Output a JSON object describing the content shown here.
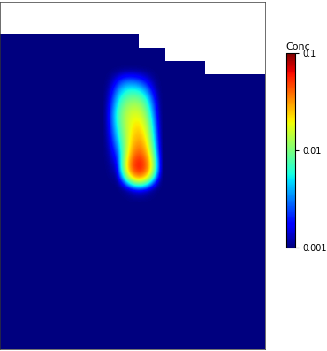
{
  "chart_data": {
    "type": "heatmap",
    "tick_labels": false,
    "log": true,
    "colorbar_label": "Conc",
    "colorbar_range": [
      0.001,
      0.1
    ],
    "colorbar_ticks": [
      0.1,
      0.01,
      0.001
    ],
    "cells": [
      [
        null,
        null,
        null,
        null,
        null,
        null,
        null,
        null,
        null,
        null,
        null,
        null,
        null,
        null,
        null,
        null,
        null,
        null,
        null,
        null
      ],
      [
        0.001,
        0.001,
        0.001,
        0.001,
        0.001,
        0.001,
        0.001,
        0.001,
        0.001,
        0.001,
        0.001,
        0.001,
        null,
        null,
        null,
        null,
        null,
        null,
        null,
        null
      ],
      [
        0.001,
        0.001,
        0.001,
        0.001,
        0.001,
        0.001,
        0.001,
        0.001,
        0.001,
        0.001,
        0.001,
        0.001,
        0.001,
        0.001,
        null,
        null,
        null,
        null,
        null,
        null
      ],
      [
        0.001,
        0.001,
        0.001,
        0.001,
        0.001,
        0.001,
        0.001,
        0.001,
        0.001,
        0.001,
        0.001,
        0.001,
        0.001,
        0.001,
        0.001,
        0.001,
        0.001,
        null,
        null,
        null
      ],
      [
        0.001,
        0.001,
        0.001,
        0.001,
        0.001,
        0.001,
        0.001,
        0.001,
        0.001,
        0.001,
        0.001,
        0.001,
        0.001,
        0.001,
        0.001,
        0.001,
        0.001,
        0.001,
        0.001,
        0.001
      ],
      [
        0.001,
        0.001,
        0.001,
        0.001,
        0.001,
        0.001,
        0.001,
        0.001,
        0.001,
        0.001,
        0.001,
        0.001,
        0.001,
        0.001,
        0.001,
        0.001,
        0.001,
        0.001,
        0.001,
        0.001
      ],
      [
        0.001,
        0.001,
        0.001,
        0.001,
        0.001,
        0.001,
        0.001,
        0.001,
        0.001,
        0.005,
        0.004,
        0.001,
        0.001,
        0.001,
        0.001,
        0.001,
        0.001,
        0.001,
        0.001,
        0.001
      ],
      [
        0.001,
        0.001,
        0.001,
        0.001,
        0.001,
        0.001,
        0.001,
        0.001,
        0.001,
        0.01,
        0.012,
        0.001,
        0.001,
        0.001,
        0.001,
        0.001,
        0.001,
        0.001,
        0.001,
        0.001
      ],
      [
        0.001,
        0.001,
        0.001,
        0.001,
        0.001,
        0.001,
        0.001,
        0.001,
        0.001,
        0.015,
        0.02,
        0.001,
        0.001,
        0.001,
        0.001,
        0.001,
        0.001,
        0.001,
        0.001,
        0.001
      ],
      [
        0.001,
        0.001,
        0.001,
        0.001,
        0.001,
        0.001,
        0.001,
        0.001,
        0.001,
        0.012,
        0.03,
        0.001,
        0.001,
        0.001,
        0.001,
        0.001,
        0.001,
        0.001,
        0.001,
        0.001
      ],
      [
        0.001,
        0.001,
        0.001,
        0.001,
        0.001,
        0.001,
        0.001,
        0.001,
        0.001,
        0.008,
        0.04,
        0.001,
        0.001,
        0.001,
        0.001,
        0.001,
        0.001,
        0.001,
        0.001,
        0.001
      ],
      [
        0.001,
        0.001,
        0.001,
        0.001,
        0.001,
        0.001,
        0.001,
        0.001,
        0.001,
        0.004,
        0.06,
        0.001,
        0.001,
        0.001,
        0.001,
        0.001,
        0.001,
        0.001,
        0.001,
        0.001
      ],
      [
        0.001,
        0.001,
        0.001,
        0.001,
        0.001,
        0.001,
        0.001,
        0.001,
        0.001,
        0.002,
        0.1,
        0.001,
        0.001,
        0.001,
        0.001,
        0.001,
        0.001,
        0.001,
        0.001,
        0.001
      ],
      [
        0.001,
        0.001,
        0.001,
        0.001,
        0.001,
        0.001,
        0.001,
        0.001,
        0.001,
        0.001,
        0.003,
        0.001,
        0.001,
        0.001,
        0.001,
        0.001,
        0.001,
        0.001,
        0.001,
        0.001
      ],
      [
        0.001,
        0.001,
        0.001,
        0.001,
        0.001,
        0.001,
        0.001,
        0.001,
        0.001,
        0.001,
        0.001,
        0.001,
        0.001,
        0.001,
        0.001,
        0.001,
        0.001,
        0.001,
        0.001,
        0.001
      ],
      [
        0.001,
        0.001,
        0.001,
        0.001,
        0.001,
        0.001,
        0.001,
        0.001,
        0.001,
        0.001,
        0.001,
        0.001,
        0.001,
        0.001,
        0.001,
        0.001,
        0.001,
        0.001,
        0.001,
        0.001
      ],
      [
        0.001,
        0.001,
        0.001,
        0.001,
        0.001,
        0.001,
        0.001,
        0.001,
        0.001,
        0.001,
        0.001,
        0.001,
        0.001,
        0.001,
        0.001,
        0.001,
        0.001,
        0.001,
        0.001,
        0.001
      ],
      [
        0.001,
        0.001,
        0.001,
        0.001,
        0.001,
        0.001,
        0.001,
        0.001,
        0.001,
        0.001,
        0.001,
        0.001,
        0.001,
        0.001,
        0.001,
        0.001,
        0.001,
        0.001,
        0.001,
        0.001
      ],
      [
        0.001,
        0.001,
        0.001,
        0.001,
        0.001,
        0.001,
        0.001,
        0.001,
        0.001,
        0.001,
        0.001,
        0.001,
        0.001,
        0.001,
        0.001,
        0.001,
        0.001,
        0.001,
        0.001,
        0.001
      ],
      [
        0.001,
        0.001,
        0.001,
        0.001,
        0.001,
        0.001,
        0.001,
        0.001,
        0.001,
        0.001,
        0.001,
        0.001,
        0.001,
        0.001,
        0.001,
        0.001,
        0.001,
        0.001,
        0.001,
        0.001
      ],
      [
        0.001,
        0.001,
        0.001,
        0.001,
        0.001,
        0.001,
        0.001,
        0.001,
        0.001,
        0.001,
        0.001,
        0.001,
        0.001,
        0.001,
        0.001,
        0.001,
        0.001,
        0.001,
        0.001,
        0.001
      ],
      [
        0.001,
        0.001,
        0.001,
        0.001,
        0.001,
        0.001,
        0.001,
        0.001,
        0.001,
        0.001,
        0.001,
        0.001,
        0.001,
        0.001,
        0.001,
        0.001,
        0.001,
        0.001,
        0.001,
        0.001
      ],
      [
        0.001,
        0.001,
        0.001,
        0.001,
        0.001,
        0.001,
        0.001,
        0.001,
        0.001,
        0.001,
        0.001,
        0.001,
        0.001,
        0.001,
        0.001,
        0.001,
        0.001,
        0.001,
        0.001,
        0.001
      ],
      [
        0.001,
        0.001,
        0.001,
        0.001,
        0.001,
        0.001,
        0.001,
        0.001,
        0.001,
        0.001,
        0.001,
        0.001,
        0.001,
        0.001,
        0.001,
        0.001,
        0.001,
        0.001,
        0.001,
        0.001
      ],
      [
        0.001,
        0.001,
        0.001,
        0.001,
        0.001,
        0.001,
        0.001,
        0.001,
        0.001,
        0.001,
        0.001,
        0.001,
        0.001,
        0.001,
        0.001,
        0.001,
        0.001,
        0.001,
        0.001,
        0.001
      ],
      [
        0.001,
        0.001,
        0.001,
        0.001,
        0.001,
        0.001,
        0.001,
        0.001,
        0.001,
        0.001,
        0.001,
        0.001,
        0.001,
        0.001,
        0.001,
        0.001,
        0.001,
        0.001,
        0.001,
        0.001
      ]
    ]
  }
}
